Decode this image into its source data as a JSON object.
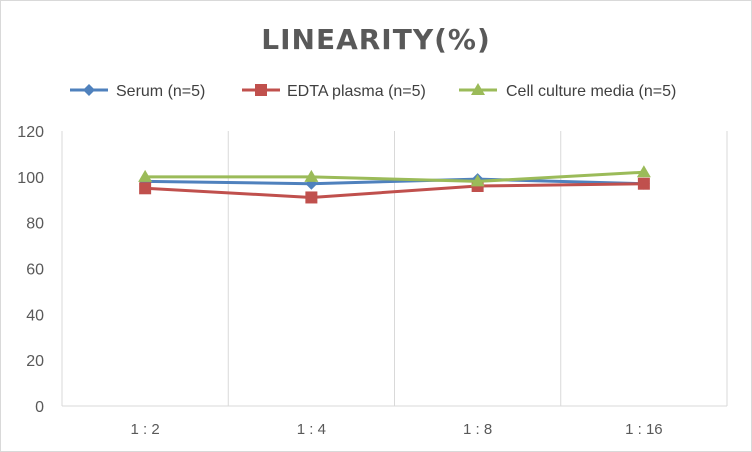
{
  "chart_data": {
    "type": "line",
    "title": "LINEARITY(%)",
    "categories": [
      "1:2",
      "1:4",
      "1:8",
      "1:16"
    ],
    "ylim": [
      0,
      120
    ],
    "yticks": [
      0,
      20,
      40,
      60,
      80,
      100,
      120
    ],
    "grid": "vertical",
    "legend_position": "top",
    "series": [
      {
        "name": "Serum (n=5)",
        "values": [
          98,
          97,
          99,
          97
        ],
        "color": "#4f81bd",
        "marker": "diamond"
      },
      {
        "name": "EDTA plasma (n=5)",
        "values": [
          95,
          91,
          96,
          97
        ],
        "color": "#c0504d",
        "marker": "square"
      },
      {
        "name": "Cell culture media (n=5)",
        "values": [
          100,
          100,
          98,
          102
        ],
        "color": "#9bbb59",
        "marker": "triangle"
      }
    ]
  }
}
